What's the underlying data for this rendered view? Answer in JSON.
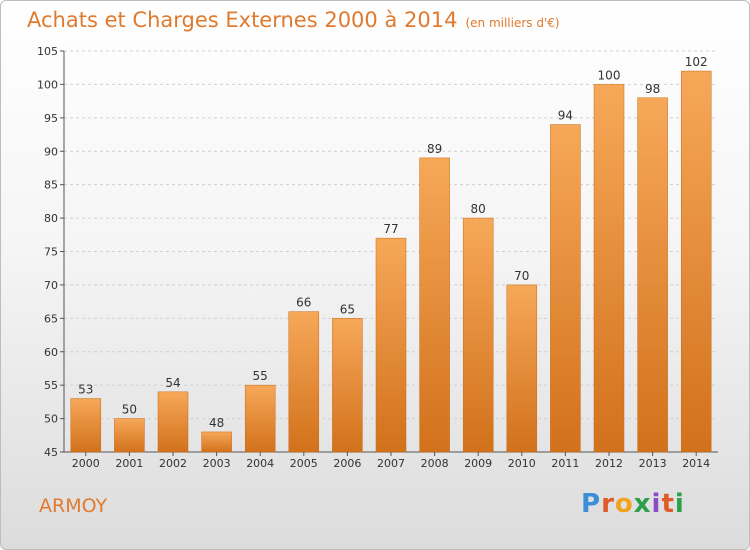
{
  "header": {
    "title": "Achats et Charges Externes 2000 à 2014",
    "subtitle": "(en milliers d'€)"
  },
  "footer": {
    "commune": "ARMOY",
    "logo_text": "Proxiti"
  },
  "colors": {
    "accent": "#e07a2e",
    "bar_top": "#f6a859",
    "bar_bottom": "#d2711b",
    "grid": "#d0d0d0"
  },
  "chart_data": {
    "type": "bar",
    "categories": [
      "2000",
      "2001",
      "2002",
      "2003",
      "2004",
      "2005",
      "2006",
      "2007",
      "2008",
      "2009",
      "2010",
      "2011",
      "2012",
      "2013",
      "2014"
    ],
    "values": [
      53,
      50,
      54,
      48,
      55,
      66,
      65,
      77,
      89,
      80,
      70,
      94,
      100,
      98,
      102
    ],
    "title": "Achats et Charges Externes 2000 à 2014",
    "subtitle": "(en milliers d'€)",
    "ylim": [
      45,
      105
    ],
    "yticks": [
      45,
      50,
      55,
      60,
      65,
      70,
      75,
      80,
      85,
      90,
      95,
      100,
      105
    ],
    "grid": true
  }
}
